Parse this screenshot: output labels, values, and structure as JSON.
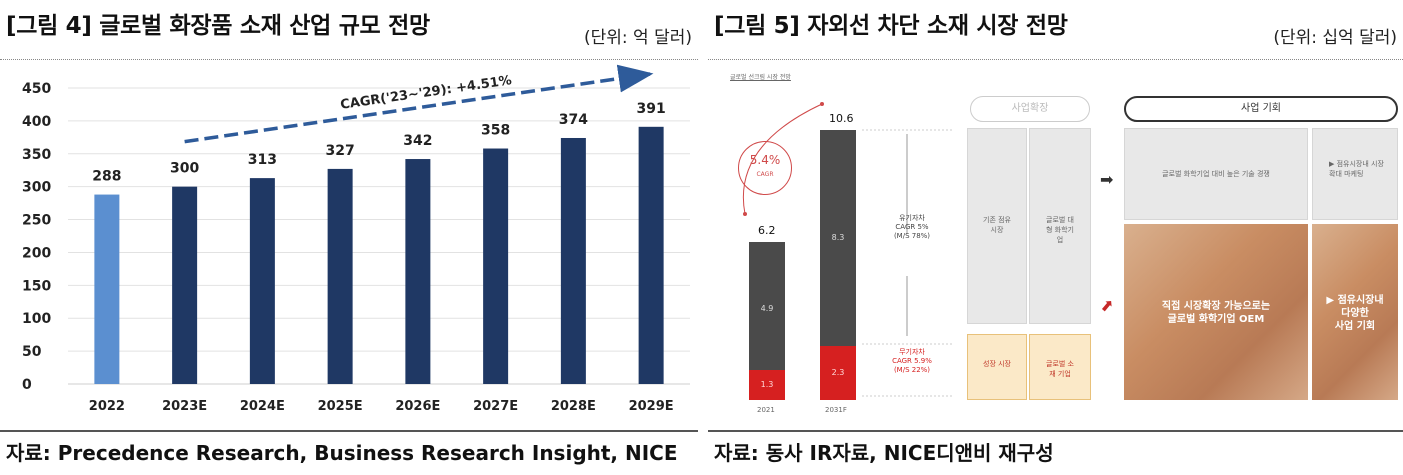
{
  "left": {
    "title": "[그림 4] 글로벌 화장품 소재 산업 규모 전망",
    "unit": "(단위: 억 달러)",
    "source": "자료: Precedence Research, Business Research Insight, NICE"
  },
  "right": {
    "title": "[그림 5] 자외선 차단 소재 시장 전망",
    "unit": "(단위: 십억 달러)",
    "source": "자료: 동사 IR자료, NICE디앤비 재구성",
    "infographic": {
      "header_small": "글로벌 선크림 시장 전망",
      "cagr_bubble": "5.4%",
      "cagr_sub": "CAGR",
      "years": [
        "2021",
        "2031F"
      ],
      "totals": [
        "6.2",
        "10.6"
      ],
      "organic_values": [
        "4.9",
        "8.3"
      ],
      "inorganic_values": [
        "1.3",
        "2.3"
      ],
      "organic_label": "유기자차",
      "organic_cagr": "CAGR 5%",
      "organic_share": "(M/S 78%)",
      "inorganic_label": "무기자차",
      "inorganic_cagr": "CAGR 5.9%",
      "inorganic_share": "(M/S 22%)",
      "current_pill": "사업확장",
      "biz_pill": "사업 기회",
      "col1_text": "기존 점유 시장",
      "col2_text": "글로벌 대형 화학기업",
      "col3_text": "성장 시장",
      "col4_text": "글로벌 소재 기업",
      "top_big_text": "글로벌 화학기업 대비 높은 기술 경쟁",
      "top_side_text": "▶ 점유시장내 시장 확대 마케팅",
      "photo_text_1": "직접 시장확장 가능으로는",
      "photo_text_2": "글로벌 화학기업 OEM",
      "photo_side_1": "▶ 점유시장내",
      "photo_side_2": "다양한",
      "photo_side_3": "사업 기회"
    }
  },
  "chart_data": {
    "type": "bar",
    "title": "[그림 4] 글로벌 화장품 소재 산업 규모 전망",
    "unit": "(단위: 억 달러)",
    "categories": [
      "2022",
      "2023E",
      "2024E",
      "2025E",
      "2026E",
      "2027E",
      "2028E",
      "2029E"
    ],
    "values": [
      288,
      300,
      313,
      327,
      342,
      358,
      374,
      391
    ],
    "highlight_color": "#5b8fd0",
    "bar_color": "#1f3864",
    "ylim": [
      0,
      450
    ],
    "yticks": [
      0,
      50,
      100,
      150,
      200,
      250,
      300,
      350,
      400,
      450
    ],
    "annotation": "CAGR('23~'29): +4.51%",
    "grid": true
  }
}
